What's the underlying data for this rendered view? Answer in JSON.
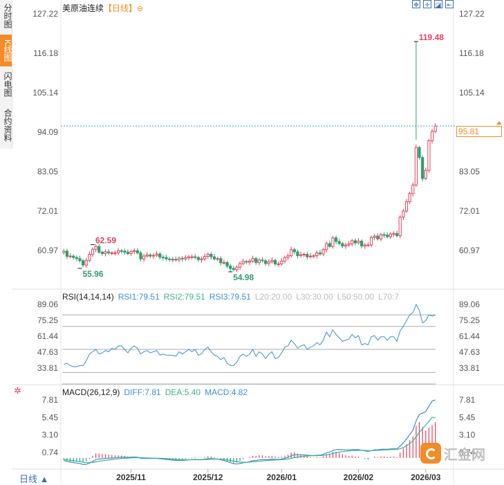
{
  "sidebar": {
    "tabs": [
      {
        "label": "分时图",
        "active": false
      },
      {
        "label": "K线图",
        "active": true
      },
      {
        "label": "闪电图",
        "active": false
      },
      {
        "label": "合约资料",
        "active": false
      }
    ]
  },
  "header": {
    "instrument": "美原油连续",
    "period": "【日线】",
    "zoom_icon": "⊖",
    "tools": [
      "fullscreen-icon",
      "crosshair-icon",
      "compare-icon",
      "back-icon"
    ]
  },
  "price_tag": "95.81",
  "rsi_label": {
    "name": "RSI(14,14,14)",
    "rsi1": "RSI1:79.51",
    "rsi2": "RSI2:79.51",
    "rsi3": "RSI3:79.51",
    "l20": "L20:20.00",
    "l30": "L30:30.00",
    "l50": "L50:50.00",
    "l70": "L70:7"
  },
  "macd_label": {
    "name": "MACD(26,12,9)",
    "diff": "DIFF:7.81",
    "dea": "DEA:5.40",
    "macd": "MACD:4.82"
  },
  "bottom": {
    "period_button": "日线 ▲"
  },
  "watermark": {
    "text": "汇金网",
    "url": "www.gold678.com"
  },
  "colors": {
    "up": "#e0435d",
    "down": "#2e9e6b",
    "rsi": "#3a8fd6",
    "dea": "#3bb38a",
    "accent": "#f28c28"
  },
  "chart_data": [
    {
      "type": "candlestick",
      "title": "美原油连续 日线",
      "y_ticks_left": [
        "127.22",
        "116.18",
        "105.14",
        "94.09",
        "83.05",
        "72.01",
        "60.97"
      ],
      "y_ticks_right": [
        "127.22",
        "116.18",
        "105.14",
        "94.09",
        "83.05",
        "72.01",
        "60.97"
      ],
      "x_ticks": [
        "2025/11",
        "2025/12",
        "2026/01",
        "2026/02",
        "2026/03"
      ],
      "ylim": [
        54.0,
        128.0
      ],
      "last_price": 95.81,
      "annotations": [
        {
          "label": "119.48",
          "value": 119.48,
          "kind": "high"
        },
        {
          "label": "62.59",
          "value": 62.59,
          "kind": "high"
        },
        {
          "label": "55.96",
          "value": 55.96,
          "kind": "low"
        },
        {
          "label": "54.98",
          "value": 54.98,
          "kind": "low"
        }
      ],
      "closes": [
        60.8,
        59.3,
        59.4,
        59.0,
        58.7,
        58.1,
        56.9,
        58.2,
        59.9,
        61.3,
        62.1,
        60.5,
        60.1,
        60.6,
        60.3,
        60.3,
        60.3,
        60.9,
        60.8,
        60.5,
        60.1,
        60.7,
        60.9,
        60.3,
        58.6,
        59.4,
        59.7,
        59.4,
        59.6,
        60.0,
        59.1,
        59.0,
        58.6,
        58.5,
        58.5,
        58.3,
        58.8,
        58.6,
        58.9,
        59.2,
        59.2,
        59.0,
        58.4,
        58.6,
        59.3,
        59.9,
        59.2,
        58.6,
        58.7,
        57.5,
        57.6,
        56.6,
        55.9,
        55.6,
        56.3,
        57.3,
        57.9,
        57.7,
        58.0,
        58.7,
        57.6,
        58.3,
        58.1,
        57.3,
        57.8,
        58.2,
        57.2,
        57.2,
        58.0,
        59.0,
        59.5,
        61.2,
        60.6,
        59.5,
        59.8,
        59.9,
        59.2,
        59.4,
        59.5,
        60.3,
        60.0,
        61.2,
        62.9,
        62.1,
        64.5,
        63.5,
        62.9,
        62.2,
        62.5,
        62.8,
        63.7,
        63.1,
        63.6,
        62.2,
        62.5,
        62.5,
        64.6,
        65.0,
        64.2,
        65.4,
        65.3,
        64.8,
        65.6,
        65.7,
        65.1,
        70.3,
        72.0,
        74.6,
        76.9,
        79.3,
        89.8,
        87.0,
        81.1,
        83.4,
        91.7,
        94.3,
        95.8
      ]
    },
    {
      "type": "line",
      "title": "RSI(14,14,14)",
      "y_ticks": [
        "89.06",
        "75.25",
        "61.44",
        "47.63",
        "33.81"
      ],
      "ylim": [
        28.0,
        93.0
      ],
      "reference_lines": [
        20,
        30,
        50,
        70,
        80
      ],
      "series": [
        {
          "name": "RSI1",
          "values": [
            37,
            38,
            36,
            35,
            35,
            36,
            36,
            40,
            46,
            48,
            50,
            46,
            47,
            49,
            48,
            51,
            50,
            53,
            53,
            50,
            47,
            51,
            53,
            51,
            46,
            48,
            49,
            47,
            48,
            49,
            45,
            46,
            45,
            45,
            45,
            44,
            48,
            46,
            48,
            50,
            48,
            50,
            45,
            46,
            50,
            52,
            48,
            45,
            44,
            41,
            43,
            38,
            36,
            36,
            39,
            44,
            46,
            44,
            46,
            50,
            44,
            48,
            46,
            42,
            46,
            48,
            42,
            43,
            47,
            52,
            53,
            58,
            55,
            51,
            53,
            54,
            50,
            52,
            53,
            56,
            54,
            58,
            65,
            61,
            67,
            63,
            60,
            57,
            58,
            59,
            63,
            60,
            62,
            54,
            55,
            54,
            61,
            62,
            58,
            61,
            61,
            58,
            61,
            61,
            57,
            66,
            70,
            75,
            80,
            82,
            89,
            84,
            73,
            75,
            80,
            79,
            80
          ]
        }
      ]
    },
    {
      "type": "bar+line",
      "title": "MACD(26,12,9)",
      "y_ticks": [
        "7.81",
        "5.45",
        "3.10",
        "0.74"
      ],
      "ylim": [
        -1.0,
        8.2
      ],
      "series": [
        {
          "name": "DIFF",
          "values": [
            -0.35,
            -0.45,
            -0.55,
            -0.62,
            -0.68,
            -0.74,
            -0.88,
            -0.85,
            -0.7,
            -0.46,
            -0.21,
            -0.14,
            -0.11,
            -0.05,
            -0.03,
            0.0,
            0.02,
            0.07,
            0.1,
            0.11,
            0.09,
            0.11,
            0.13,
            0.11,
            -0.02,
            -0.05,
            -0.05,
            -0.07,
            -0.07,
            -0.05,
            -0.1,
            -0.14,
            -0.2,
            -0.24,
            -0.28,
            -0.32,
            -0.31,
            -0.33,
            -0.3,
            -0.25,
            -0.21,
            -0.2,
            -0.23,
            -0.23,
            -0.17,
            -0.08,
            -0.07,
            -0.11,
            -0.13,
            -0.25,
            -0.33,
            -0.47,
            -0.63,
            -0.77,
            -0.81,
            -0.75,
            -0.65,
            -0.58,
            -0.49,
            -0.36,
            -0.34,
            -0.26,
            -0.21,
            -0.23,
            -0.2,
            -0.14,
            -0.17,
            -0.19,
            -0.15,
            -0.04,
            0.09,
            0.32,
            0.44,
            0.43,
            0.43,
            0.43,
            0.37,
            0.35,
            0.32,
            0.37,
            0.38,
            0.48,
            0.69,
            0.78,
            1.03,
            1.13,
            1.15,
            1.11,
            1.09,
            1.08,
            1.14,
            1.12,
            1.14,
            1.03,
            0.96,
            0.89,
            0.99,
            1.09,
            1.09,
            1.16,
            1.19,
            1.18,
            1.22,
            1.24,
            1.22,
            1.6,
            2.03,
            2.56,
            3.13,
            3.74,
            4.99,
            5.86,
            6.02,
            6.25,
            6.98,
            7.67,
            7.81
          ]
        },
        {
          "name": "DEA",
          "values": [
            -0.2,
            -0.25,
            -0.31,
            -0.37,
            -0.43,
            -0.49,
            -0.57,
            -0.63,
            -0.64,
            -0.6,
            -0.52,
            -0.44,
            -0.38,
            -0.31,
            -0.25,
            -0.2,
            -0.16,
            -0.11,
            -0.07,
            -0.03,
            -0.01,
            0.01,
            0.04,
            0.05,
            0.04,
            0.02,
            0.01,
            -0.01,
            -0.02,
            -0.03,
            -0.04,
            -0.06,
            -0.09,
            -0.12,
            -0.15,
            -0.18,
            -0.21,
            -0.23,
            -0.24,
            -0.24,
            -0.24,
            -0.24,
            -0.24,
            -0.24,
            -0.23,
            -0.2,
            -0.17,
            -0.16,
            -0.15,
            -0.17,
            -0.2,
            -0.25,
            -0.33,
            -0.42,
            -0.49,
            -0.55,
            -0.57,
            -0.57,
            -0.55,
            -0.51,
            -0.48,
            -0.44,
            -0.39,
            -0.36,
            -0.33,
            -0.29,
            -0.27,
            -0.25,
            -0.23,
            -0.19,
            -0.13,
            -0.04,
            0.05,
            0.13,
            0.19,
            0.24,
            0.27,
            0.29,
            0.3,
            0.31,
            0.33,
            0.36,
            0.43,
            0.5,
            0.61,
            0.71,
            0.8,
            0.86,
            0.91,
            0.95,
            0.98,
            1.01,
            1.03,
            1.03,
            1.02,
            0.99,
            0.99,
            1.01,
            1.03,
            1.05,
            1.08,
            1.1,
            1.12,
            1.14,
            1.16,
            1.24,
            1.4,
            1.63,
            1.93,
            2.29,
            2.83,
            3.44,
            3.96,
            4.42,
            4.93,
            5.48,
            5.4
          ]
        },
        {
          "name": "MACD",
          "values": [
            -0.3,
            -0.4,
            -0.48,
            -0.5,
            -0.5,
            -0.5,
            -0.62,
            -0.44,
            -0.12,
            0.28,
            0.62,
            0.6,
            0.54,
            0.52,
            0.44,
            0.4,
            0.36,
            0.36,
            0.34,
            0.28,
            0.2,
            0.2,
            0.18,
            0.12,
            -0.12,
            -0.14,
            -0.12,
            -0.12,
            -0.1,
            -0.04,
            -0.12,
            -0.16,
            -0.22,
            -0.24,
            -0.26,
            -0.28,
            -0.2,
            -0.2,
            -0.12,
            -0.02,
            0.06,
            0.08,
            0.02,
            0.02,
            0.12,
            0.24,
            0.2,
            0.1,
            0.04,
            -0.16,
            -0.26,
            -0.44,
            -0.6,
            -0.7,
            -0.64,
            -0.4,
            -0.16,
            -0.02,
            0.12,
            0.3,
            0.28,
            0.36,
            0.36,
            0.26,
            0.26,
            0.3,
            0.2,
            0.12,
            0.16,
            0.3,
            0.44,
            0.72,
            0.78,
            0.6,
            0.48,
            0.38,
            0.2,
            0.12,
            0.04,
            0.12,
            0.1,
            0.24,
            0.52,
            0.56,
            0.84,
            0.84,
            0.7,
            0.5,
            0.36,
            0.26,
            0.32,
            0.22,
            0.22,
            0.0,
            -0.12,
            -0.2,
            0.0,
            0.16,
            0.12,
            0.22,
            0.22,
            0.16,
            0.2,
            0.2,
            0.12,
            0.72,
            1.26,
            1.86,
            2.4,
            2.9,
            4.32,
            4.84,
            4.12,
            3.66,
            4.1,
            4.38,
            4.82
          ]
        }
      ]
    }
  ]
}
